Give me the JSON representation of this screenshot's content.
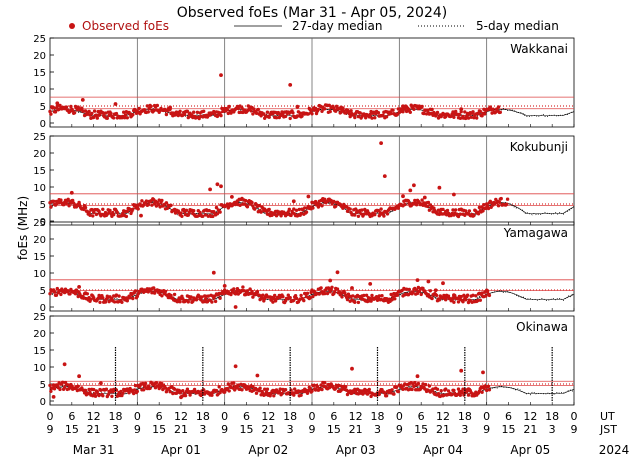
{
  "chart_data": {
    "type": "scatter",
    "title": "Observed foEs (Mar 31 - Apr 05, 2024)",
    "ylabel": "foEs (MHz)",
    "ylim": [
      0,
      25
    ],
    "yticks": [
      0,
      5,
      10,
      15,
      20,
      25
    ],
    "legend": {
      "observed": "Observed foEs",
      "median27": "27-day median",
      "median5": "5-day median"
    },
    "time_axis": {
      "hour_ticks_ut": [
        "0",
        "6",
        "12",
        "18",
        "0",
        "6",
        "12",
        "18",
        "0",
        "6",
        "12",
        "18",
        "0",
        "6",
        "12",
        "18",
        "0",
        "6",
        "12",
        "18",
        "0",
        "6",
        "12",
        "18",
        "0"
      ],
      "hour_ticks_jst": [
        "9",
        "15",
        "21",
        "3",
        "9",
        "15",
        "21",
        "3",
        "9",
        "15",
        "21",
        "3",
        "9",
        "15",
        "21",
        "3",
        "9",
        "15",
        "21",
        "3",
        "9",
        "15",
        "21",
        "3",
        "9"
      ],
      "ut_label": "UT",
      "jst_label": "JST",
      "dates": [
        "Mar 31",
        "Apr 01",
        "Apr 02",
        "Apr 03",
        "Apr 04",
        "Apr 05"
      ],
      "year": "2024"
    },
    "stations": [
      {
        "name": "Wakkanai",
        "band": [
          4.2,
          7.6
        ],
        "observed_until_hr": 124,
        "points": [
          [
            2,
            5.8
          ],
          [
            9,
            6.8
          ],
          [
            18,
            5.6
          ],
          [
            33,
            4.6
          ],
          [
            47,
            14.1
          ],
          [
            66,
            11.2
          ],
          [
            68,
            4.8
          ],
          [
            80,
            4.6
          ],
          [
            97,
            4.9
          ],
          [
            113,
            4.1
          ]
        ]
      },
      {
        "name": "Kokubunji",
        "band": [
          4.6,
          8.0
        ],
        "observed_until_hr": 126,
        "points": [
          [
            6,
            8.3
          ],
          [
            25,
            1.6
          ],
          [
            44,
            9.3
          ],
          [
            46,
            10.8
          ],
          [
            47,
            10.2
          ],
          [
            50,
            7.1
          ],
          [
            60,
            3.2
          ],
          [
            67,
            5.8
          ],
          [
            71,
            7.2
          ],
          [
            75,
            6.5
          ],
          [
            91,
            22.9
          ],
          [
            92,
            13.2
          ],
          [
            97,
            7.3
          ],
          [
            99,
            9.0
          ],
          [
            100,
            10.5
          ],
          [
            103,
            6.9
          ],
          [
            107,
            9.8
          ],
          [
            111,
            7.8
          ],
          [
            120,
            3.9
          ]
        ]
      },
      {
        "name": "Yamagawa",
        "band": [
          4.9,
          8.0
        ],
        "observed_until_hr": 121,
        "points": [
          [
            8,
            5.9
          ],
          [
            43,
            1.6
          ],
          [
            45,
            10.1
          ],
          [
            48,
            6.2
          ],
          [
            51,
            0.0
          ],
          [
            77,
            7.8
          ],
          [
            79,
            10.2
          ],
          [
            83,
            5.6
          ],
          [
            88,
            6.8
          ],
          [
            101,
            7.9
          ],
          [
            104,
            7.5
          ],
          [
            106,
            4.9
          ],
          [
            108,
            7.0
          ],
          [
            111,
            3.5
          ]
        ]
      },
      {
        "name": "Okinawa",
        "band": [
          4.6,
          5.8
        ],
        "observed_until_hr": 121,
        "points": [
          [
            1,
            1.2
          ],
          [
            4,
            10.8
          ],
          [
            8,
            7.3
          ],
          [
            14,
            5.2
          ],
          [
            36,
            1.1
          ],
          [
            51,
            10.2
          ],
          [
            57,
            7.5
          ],
          [
            83,
            9.5
          ],
          [
            101,
            7.3
          ],
          [
            113,
            8.9
          ],
          [
            115,
            3.5
          ],
          [
            119,
            8.4
          ]
        ]
      }
    ]
  }
}
